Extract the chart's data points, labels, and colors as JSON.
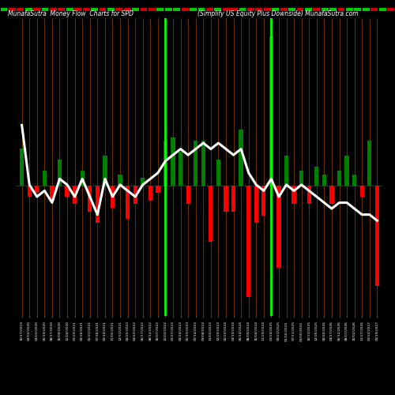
{
  "title_left": "MunafaSutra  Money Flow  Charts for SPD",
  "title_right": "(Simplify US Equity Plus Downside) MunafaSutra.com",
  "background_color": "#000000",
  "bar_width": 0.55,
  "line_color": "#ffffff",
  "highlight_color": "#00ff00",
  "highlight_indices": [
    19,
    33
  ],
  "categories": [
    "10/17/2019",
    "02/03/2020",
    "04/03/2020",
    "06/19/2020",
    "08/17/2020",
    "10/09/2020",
    "12/04/2020",
    "01/29/2021",
    "03/26/2021",
    "05/21/2021",
    "07/16/2021",
    "09/10/2021",
    "11/05/2021",
    "12/31/2021",
    "02/25/2022",
    "04/22/2022",
    "06/17/2022",
    "08/12/2022",
    "10/07/2022",
    "12/02/2022",
    "01/27/2023",
    "03/24/2023",
    "05/19/2023",
    "07/14/2023",
    "09/08/2023",
    "11/03/2023",
    "12/29/2023",
    "02/23/2024",
    "04/19/2024",
    "06/14/2024",
    "08/09/2024",
    "10/04/2024",
    "11/29/2024",
    "01/24/2025",
    "03/21/2025",
    "05/16/2025",
    "07/11/2025",
    "09/05/2025",
    "10/31/2025",
    "12/26/2025",
    "02/20/2026",
    "04/17/2026",
    "06/12/2026",
    "08/07/2026",
    "10/02/2026",
    "11/27/2026",
    "01/22/2027",
    "03/19/2027"
  ],
  "bar_values": [
    10,
    -3,
    -2,
    4,
    -4,
    7,
    -3,
    -5,
    4,
    -7,
    -10,
    8,
    -6,
    3,
    -9,
    -5,
    2,
    -4,
    -2,
    12,
    13,
    9,
    -5,
    12,
    12,
    -15,
    7,
    -7,
    -7,
    15,
    -30,
    -10,
    -8,
    40,
    -22,
    8,
    -5,
    4,
    -5,
    5,
    3,
    -5,
    4,
    8,
    3,
    -3,
    12,
    -27
  ],
  "bar_colors": [
    "green",
    "red",
    "red",
    "green",
    "red",
    "green",
    "red",
    "red",
    "green",
    "red",
    "red",
    "green",
    "red",
    "green",
    "red",
    "red",
    "green",
    "red",
    "red",
    "green",
    "green",
    "green",
    "red",
    "green",
    "green",
    "red",
    "green",
    "red",
    "red",
    "green",
    "red",
    "red",
    "red",
    "green",
    "red",
    "green",
    "red",
    "green",
    "red",
    "green",
    "green",
    "red",
    "green",
    "green",
    "green",
    "red",
    "green",
    "red"
  ],
  "line_values": [
    0.72,
    0.62,
    0.6,
    0.61,
    0.59,
    0.63,
    0.62,
    0.6,
    0.63,
    0.6,
    0.57,
    0.63,
    0.6,
    0.62,
    0.61,
    0.6,
    0.62,
    0.63,
    0.64,
    0.66,
    0.67,
    0.68,
    0.67,
    0.68,
    0.69,
    0.68,
    0.69,
    0.68,
    0.67,
    0.68,
    0.64,
    0.62,
    0.61,
    0.63,
    0.6,
    0.62,
    0.61,
    0.62,
    0.61,
    0.6,
    0.59,
    0.58,
    0.59,
    0.59,
    0.58,
    0.57,
    0.57,
    0.56
  ],
  "ylim": [
    -35,
    45
  ],
  "line_ylim": [
    0.4,
    0.9
  ],
  "separator_color": "#8B4500",
  "separator_linewidth": 0.5
}
